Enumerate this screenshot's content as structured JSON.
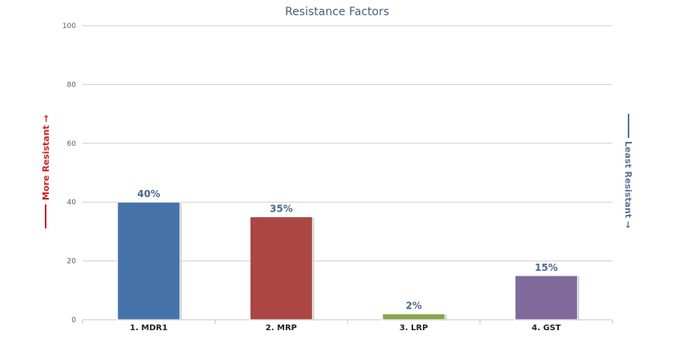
{
  "chart_data": {
    "type": "bar",
    "title": "Resistance Factors",
    "categories": [
      "1. MDR1",
      "2. MRP",
      "3. LRP",
      "4. GST"
    ],
    "values": [
      40,
      35,
      2,
      15
    ],
    "data_labels": [
      "40%",
      "35%",
      "2%",
      "15%"
    ],
    "colors": [
      "#4572a7",
      "#aa4643",
      "#89a54e",
      "#80699b"
    ],
    "ylim": [
      0,
      100
    ],
    "yticks": [
      0,
      20,
      40,
      60,
      80,
      100
    ],
    "grid": true,
    "left_axis_label": "More Resistant →",
    "right_axis_label": "Least Resistant →",
    "left_axis_color": "#cc2222",
    "right_axis_color": "#5a7494"
  }
}
